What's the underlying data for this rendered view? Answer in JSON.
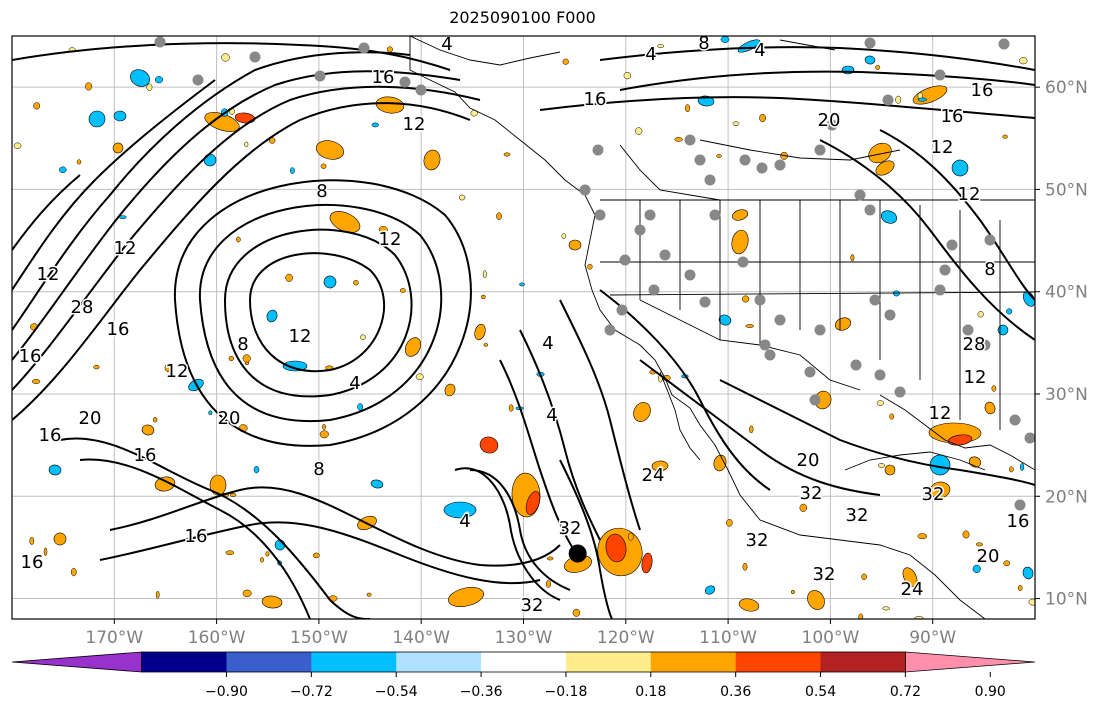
{
  "title": "2025090100 F000",
  "map": {
    "lon_range": [
      -180,
      -80
    ],
    "lat_range": [
      8,
      65
    ],
    "lon_ticks": [
      {
        "lon": -170,
        "label": "170°W"
      },
      {
        "lon": -160,
        "label": "160°W"
      },
      {
        "lon": -150,
        "label": "150°W"
      },
      {
        "lon": -140,
        "label": "140°W"
      },
      {
        "lon": -130,
        "label": "130°W"
      },
      {
        "lon": -120,
        "label": "120°W"
      },
      {
        "lon": -110,
        "label": "110°W"
      },
      {
        "lon": -100,
        "label": "100°W"
      },
      {
        "lon": -90,
        "label": "90°W"
      }
    ],
    "lat_ticks": [
      {
        "lat": 60,
        "label": "60°N"
      },
      {
        "lat": 50,
        "label": "50°N"
      },
      {
        "lat": 40,
        "label": "40°N"
      },
      {
        "lat": 30,
        "label": "30°N"
      },
      {
        "lat": 20,
        "label": "20°N"
      },
      {
        "lat": 10,
        "label": "10°N"
      }
    ],
    "contour_labels": [
      "4",
      "8",
      "12",
      "16",
      "20",
      "24",
      "28",
      "32"
    ],
    "storm_center": {
      "lon": -124.7,
      "lat": 14.4
    },
    "colors": {
      "land_outline": "#000000",
      "grid": "#c0c0c0",
      "tick_text": "#808080",
      "dots": "#888888"
    }
  },
  "colorbar": {
    "colors": [
      "#9932cc",
      "#00008b",
      "#3a5fcd",
      "#00bfff",
      "#b0e2ff",
      "#ffffff",
      "#ffec8b",
      "#ffa500",
      "#ff4500",
      "#b22222",
      "#ff8fab"
    ],
    "tick_labels": [
      "−0.90",
      "−0.72",
      "−0.54",
      "−0.36",
      "−0.18",
      "0.18",
      "0.36",
      "0.54",
      "0.72",
      "0.90"
    ]
  }
}
